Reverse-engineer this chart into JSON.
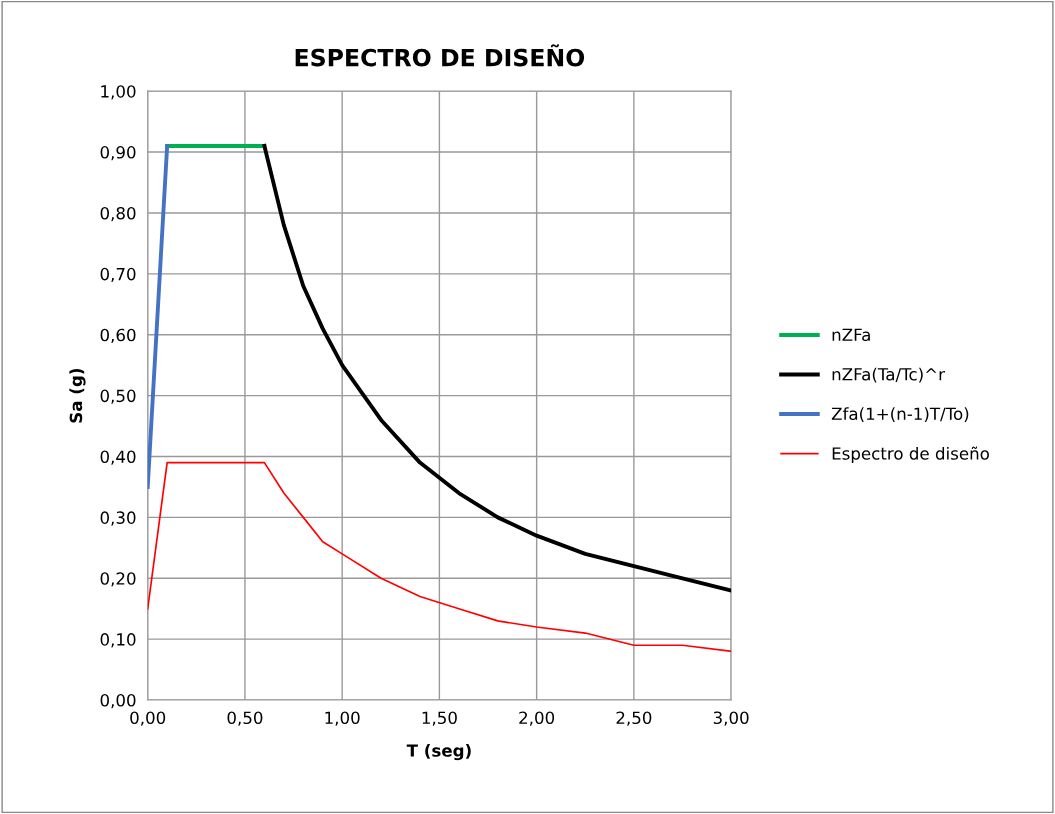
{
  "chart_data": {
    "type": "line",
    "title": "ESPECTRO DE DISEÑO",
    "xlabel": "T (seg)",
    "ylabel": "Sa (g)",
    "series": [
      {
        "name": "nZFa",
        "color": "#00b050",
        "x": [
          0.1,
          0.6
        ],
        "values": [
          0.91,
          0.91
        ]
      },
      {
        "name": "nZFa(Ta/Tc)^r",
        "color": "#000000",
        "x": [
          0.6,
          0.7,
          0.8,
          0.9,
          1.0,
          1.2,
          1.4,
          1.6,
          1.8,
          2.0,
          2.25,
          2.5,
          2.75,
          3.0
        ],
        "values": [
          0.91,
          0.78,
          0.68,
          0.61,
          0.55,
          0.46,
          0.39,
          0.34,
          0.3,
          0.27,
          0.24,
          0.22,
          0.2,
          0.18
        ]
      },
      {
        "name": "Zfa(1+(n-1)T/To)",
        "color": "#4472c4",
        "x": [
          0.0,
          0.1
        ],
        "values": [
          0.35,
          0.91
        ]
      },
      {
        "name": "Espectro de diseño",
        "color": "#ff0000",
        "x": [
          0.0,
          0.1,
          0.6,
          0.7,
          0.8,
          0.9,
          1.0,
          1.2,
          1.4,
          1.6,
          1.8,
          2.0,
          2.25,
          2.5,
          2.75,
          3.0
        ],
        "values": [
          0.15,
          0.39,
          0.39,
          0.34,
          0.3,
          0.26,
          0.24,
          0.2,
          0.17,
          0.15,
          0.13,
          0.12,
          0.11,
          0.09,
          0.09,
          0.08
        ]
      }
    ],
    "xlim": [
      0,
      3
    ],
    "ylim": [
      0,
      1
    ],
    "xticks": [
      {
        "value": 0,
        "label": "0,00"
      },
      {
        "value": 0.5,
        "label": "0,50"
      },
      {
        "value": 1,
        "label": "1,00"
      },
      {
        "value": 1.5,
        "label": "1,50"
      },
      {
        "value": 2,
        "label": "2,00"
      },
      {
        "value": 2.5,
        "label": "2,50"
      },
      {
        "value": 3,
        "label": "3,00"
      }
    ],
    "yticks": [
      {
        "value": 0,
        "label": "0,00"
      },
      {
        "value": 0.1,
        "label": "0,10"
      },
      {
        "value": 0.2,
        "label": "0,20"
      },
      {
        "value": 0.3,
        "label": "0,30"
      },
      {
        "value": 0.4,
        "label": "0,40"
      },
      {
        "value": 0.5,
        "label": "0,50"
      },
      {
        "value": 0.6,
        "label": "0,60"
      },
      {
        "value": 0.7,
        "label": "0,70"
      },
      {
        "value": 0.8,
        "label": "0,80"
      },
      {
        "value": 0.9,
        "label": "0,90"
      },
      {
        "value": 1,
        "label": "1,00"
      }
    ],
    "grid": true,
    "legend": "right",
    "marker": "none",
    "line_style": "solid"
  }
}
